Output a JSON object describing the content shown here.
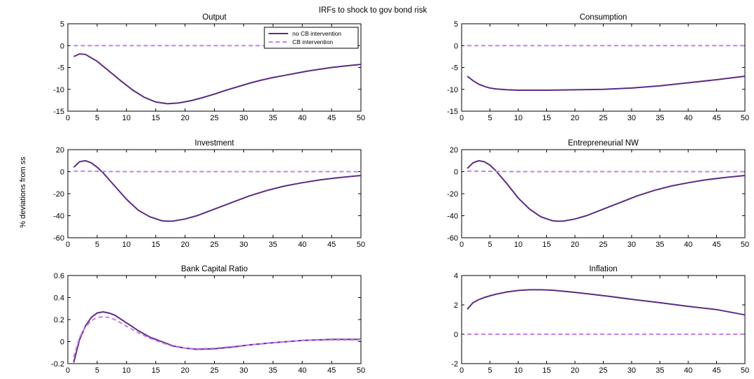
{
  "figure": {
    "suptitle": "IRFs to shock to gov bond risk",
    "ylabel": "% deviations from ss"
  },
  "colors": {
    "solid": "#5b2c83",
    "dashed": "#c77dee"
  },
  "legend": [
    "no CB intervention",
    "CB intervention"
  ],
  "chart_data": [
    {
      "type": "line",
      "title": "Output",
      "xlim": [
        0,
        50
      ],
      "ylim": [
        -15,
        5
      ],
      "xticks": [
        0,
        5,
        10,
        15,
        20,
        25,
        30,
        35,
        40,
        45,
        50
      ],
      "yticks": [
        -15,
        -10,
        -5,
        0,
        5
      ],
      "series": [
        {
          "name": "no CB intervention",
          "x": [
            1,
            2,
            3,
            5,
            7,
            9,
            11,
            13,
            15,
            17,
            19,
            21,
            23,
            25,
            27,
            29,
            31,
            33,
            35,
            37,
            39,
            41,
            43,
            45,
            47,
            50
          ],
          "y": [
            -2.5,
            -1.9,
            -2.0,
            -3.6,
            -5.8,
            -8.0,
            -10.1,
            -11.8,
            -12.9,
            -13.3,
            -13.1,
            -12.6,
            -11.9,
            -11.1,
            -10.2,
            -9.4,
            -8.6,
            -7.9,
            -7.3,
            -6.8,
            -6.3,
            -5.8,
            -5.4,
            -5.0,
            -4.7,
            -4.3
          ]
        },
        {
          "name": "CB intervention",
          "x": [
            1,
            10,
            20,
            30,
            40,
            50
          ],
          "y": [
            0,
            0,
            0,
            0,
            0,
            0
          ]
        }
      ]
    },
    {
      "type": "line",
      "title": "Consumption",
      "xlim": [
        0,
        50
      ],
      "ylim": [
        -15,
        5
      ],
      "xticks": [
        0,
        5,
        10,
        15,
        20,
        25,
        30,
        35,
        40,
        45,
        50
      ],
      "yticks": [
        -15,
        -10,
        -5,
        0,
        5
      ],
      "series": [
        {
          "name": "no CB intervention",
          "x": [
            1,
            2,
            3,
            4,
            5,
            6,
            8,
            10,
            12,
            15,
            20,
            25,
            30,
            35,
            40,
            45,
            50
          ],
          "y": [
            -7.0,
            -8.0,
            -8.8,
            -9.3,
            -9.7,
            -9.9,
            -10.1,
            -10.2,
            -10.2,
            -10.2,
            -10.1,
            -10.0,
            -9.7,
            -9.2,
            -8.5,
            -7.8,
            -7.0
          ]
        },
        {
          "name": "CB intervention",
          "x": [
            1,
            10,
            20,
            30,
            40,
            50
          ],
          "y": [
            0,
            0,
            0,
            0,
            0,
            0
          ]
        }
      ]
    },
    {
      "type": "line",
      "title": "Investment",
      "xlim": [
        0,
        50
      ],
      "ylim": [
        -60,
        20
      ],
      "xticks": [
        0,
        5,
        10,
        15,
        20,
        25,
        30,
        35,
        40,
        45,
        50
      ],
      "yticks": [
        -60,
        -40,
        -20,
        0,
        20
      ],
      "series": [
        {
          "name": "no CB intervention",
          "x": [
            1,
            2,
            3,
            4,
            5,
            6,
            8,
            10,
            12,
            14,
            16,
            17,
            18,
            20,
            22,
            25,
            28,
            31,
            34,
            37,
            40,
            43,
            46,
            50
          ],
          "y": [
            4,
            9,
            10,
            8,
            4,
            -1,
            -13,
            -25,
            -35,
            -41,
            -44.5,
            -45,
            -44.8,
            -43,
            -40,
            -34,
            -28,
            -22,
            -17,
            -13,
            -10,
            -7.5,
            -5.5,
            -3.5
          ]
        },
        {
          "name": "CB intervention",
          "x": [
            1,
            5,
            10,
            20,
            30,
            40,
            50
          ],
          "y": [
            0.5,
            0.3,
            0,
            0,
            0,
            0,
            0
          ]
        }
      ]
    },
    {
      "type": "line",
      "title": "Entrepreneurial NW",
      "xlim": [
        0,
        50
      ],
      "ylim": [
        -60,
        20
      ],
      "xticks": [
        0,
        5,
        10,
        15,
        20,
        25,
        30,
        35,
        40,
        45,
        50
      ],
      "yticks": [
        -60,
        -40,
        -20,
        0,
        20
      ],
      "series": [
        {
          "name": "no CB intervention",
          "x": [
            1,
            2,
            3,
            4,
            5,
            6,
            8,
            10,
            12,
            14,
            16,
            17,
            18,
            20,
            22,
            25,
            28,
            31,
            34,
            37,
            40,
            43,
            46,
            50
          ],
          "y": [
            3,
            8,
            10,
            9,
            6,
            1,
            -11,
            -24,
            -34,
            -41,
            -44.5,
            -45,
            -44.8,
            -43,
            -40,
            -34,
            -28,
            -22,
            -17,
            -13,
            -10,
            -7.5,
            -5.5,
            -3.5
          ]
        },
        {
          "name": "CB intervention",
          "x": [
            1,
            5,
            10,
            20,
            30,
            40,
            50
          ],
          "y": [
            0.5,
            0.3,
            0,
            0,
            0,
            0,
            0
          ]
        }
      ]
    },
    {
      "type": "line",
      "title": "Bank Capital Ratio",
      "xlim": [
        0,
        50
      ],
      "ylim": [
        -0.2,
        0.6
      ],
      "xticks": [
        0,
        5,
        10,
        15,
        20,
        25,
        30,
        35,
        40,
        45,
        50
      ],
      "yticks": [
        -0.2,
        0,
        0.2,
        0.4,
        0.6
      ],
      "series": [
        {
          "name": "no CB intervention",
          "x": [
            1,
            2,
            3,
            4,
            5,
            6,
            7,
            8,
            10,
            12,
            14,
            16,
            18,
            20,
            22,
            25,
            28,
            31,
            35,
            40,
            45,
            50
          ],
          "y": [
            -0.19,
            0.02,
            0.14,
            0.22,
            0.26,
            0.27,
            0.26,
            0.24,
            0.17,
            0.1,
            0.04,
            0.0,
            -0.04,
            -0.06,
            -0.07,
            -0.065,
            -0.05,
            -0.03,
            -0.01,
            0.01,
            0.02,
            0.02
          ]
        },
        {
          "name": "CB intervention",
          "x": [
            1,
            2,
            3,
            4,
            5,
            6,
            7,
            8,
            10,
            12,
            14,
            16,
            18,
            20,
            22,
            25,
            28,
            31,
            35,
            40,
            45,
            50
          ],
          "y": [
            -0.14,
            0.04,
            0.13,
            0.19,
            0.22,
            0.225,
            0.22,
            0.2,
            0.14,
            0.08,
            0.03,
            -0.01,
            -0.045,
            -0.06,
            -0.065,
            -0.06,
            -0.045,
            -0.03,
            -0.01,
            0.01,
            0.015,
            0.015
          ]
        }
      ]
    },
    {
      "type": "line",
      "title": "Inflation",
      "xlim": [
        0,
        50
      ],
      "ylim": [
        -2,
        4
      ],
      "xticks": [
        0,
        5,
        10,
        15,
        20,
        25,
        30,
        35,
        40,
        45,
        50
      ],
      "yticks": [
        -2,
        0,
        2,
        4
      ],
      "series": [
        {
          "name": "no CB intervention",
          "x": [
            1,
            2,
            3,
            4,
            5,
            6,
            8,
            10,
            12,
            14,
            16,
            18,
            20,
            23,
            26,
            30,
            35,
            40,
            45,
            50
          ],
          "y": [
            1.7,
            2.15,
            2.35,
            2.5,
            2.62,
            2.72,
            2.88,
            2.98,
            3.03,
            3.03,
            3.0,
            2.93,
            2.85,
            2.72,
            2.58,
            2.38,
            2.15,
            1.9,
            1.68,
            1.32
          ]
        },
        {
          "name": "CB intervention",
          "x": [
            1,
            10,
            20,
            30,
            40,
            50
          ],
          "y": [
            0,
            0,
            0,
            0,
            0,
            0
          ]
        }
      ]
    }
  ]
}
